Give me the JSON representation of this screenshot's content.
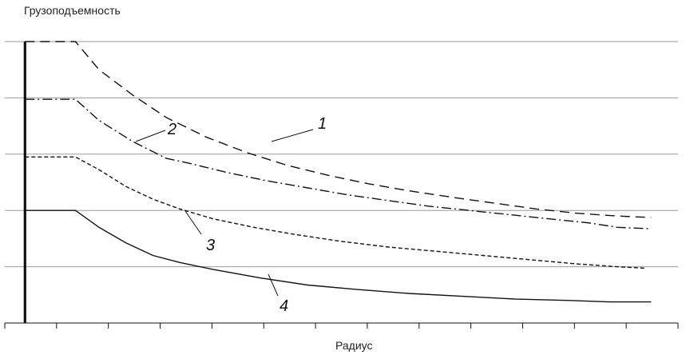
{
  "chart_data": {
    "type": "line",
    "ylabel": "Грузоподъемность",
    "xlabel": "Радиус",
    "xlim": [
      0,
      100
    ],
    "ylim": [
      0,
      100
    ],
    "grid": "horizontal",
    "legend": "none",
    "series": [
      {
        "name": "1",
        "style": "dashed",
        "points": [
          [
            3,
            100
          ],
          [
            10.5,
            100
          ],
          [
            14,
            90
          ],
          [
            19,
            81
          ],
          [
            24,
            73
          ],
          [
            30,
            66
          ],
          [
            36,
            60.5
          ],
          [
            42,
            56
          ],
          [
            48,
            52.5
          ],
          [
            54,
            49.5
          ],
          [
            60,
            47
          ],
          [
            67,
            44.5
          ],
          [
            73,
            42.5
          ],
          [
            79,
            40.5
          ],
          [
            85,
            39
          ],
          [
            91,
            38
          ],
          [
            96,
            37.5
          ]
        ]
      },
      {
        "name": "2",
        "style": "dash-dot",
        "points": [
          [
            3,
            79.5
          ],
          [
            10.5,
            79.5
          ],
          [
            14,
            72
          ],
          [
            19,
            64.5
          ],
          [
            24,
            58.5
          ],
          [
            27,
            57
          ],
          [
            33,
            53.5
          ],
          [
            39,
            50.5
          ],
          [
            45,
            48
          ],
          [
            51,
            45.5
          ],
          [
            57,
            43.5
          ],
          [
            63,
            41.5
          ],
          [
            69,
            40
          ],
          [
            75,
            38.5
          ],
          [
            81,
            37
          ],
          [
            87,
            35.5
          ],
          [
            91,
            34
          ],
          [
            96,
            33.5
          ]
        ]
      },
      {
        "name": "3",
        "style": "short-dashed",
        "points": [
          [
            3,
            59
          ],
          [
            10.5,
            59
          ],
          [
            14,
            54.5
          ],
          [
            18,
            48.5
          ],
          [
            22,
            44
          ],
          [
            26,
            40.5
          ],
          [
            31,
            37
          ],
          [
            37,
            34
          ],
          [
            43,
            31.5
          ],
          [
            50,
            29
          ],
          [
            57,
            27
          ],
          [
            64,
            25.5
          ],
          [
            71,
            24
          ],
          [
            78,
            22.5
          ],
          [
            85,
            21
          ],
          [
            91,
            20
          ],
          [
            95,
            19.5
          ]
        ]
      },
      {
        "name": "4",
        "style": "solid",
        "points": [
          [
            3,
            40
          ],
          [
            10.5,
            40
          ],
          [
            14,
            34
          ],
          [
            18,
            28.5
          ],
          [
            22,
            24
          ],
          [
            26,
            21.5
          ],
          [
            31,
            19
          ],
          [
            38,
            16
          ],
          [
            45,
            13.5
          ],
          [
            52,
            12
          ],
          [
            60,
            10.5
          ],
          [
            68,
            9.5
          ],
          [
            76,
            8.5
          ],
          [
            84,
            8
          ],
          [
            90,
            7.5
          ],
          [
            96,
            7.5
          ]
        ]
      }
    ],
    "annotations": [
      "1",
      "2",
      "3",
      "4"
    ],
    "colors": {
      "line": "#111111",
      "grid": "#9a9a9a",
      "axis": "#111111"
    }
  }
}
